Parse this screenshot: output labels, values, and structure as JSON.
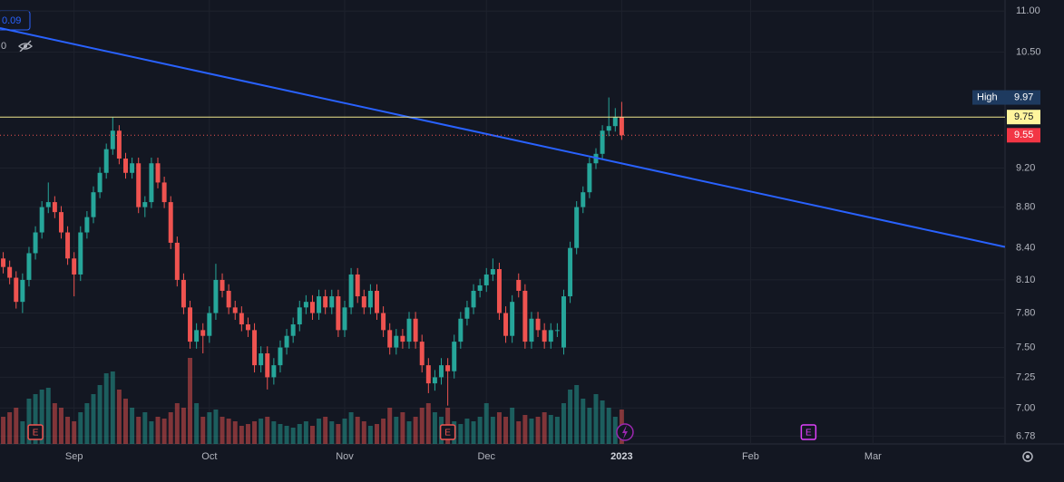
{
  "chart_data": {
    "type": "candlestick",
    "log_scale": true,
    "grid": true,
    "up_color": "#26a69a",
    "down_color": "#ef5350",
    "open": [
      8.3,
      8.22,
      8.12,
      7.9,
      8.1,
      8.35,
      8.55,
      8.8,
      8.85,
      8.75,
      8.55,
      8.3,
      8.15,
      8.55,
      8.7,
      8.95,
      9.15,
      9.4,
      9.6,
      9.3,
      9.15,
      9.25,
      8.8,
      8.85,
      9.25,
      9.05,
      8.85,
      8.45,
      8.1,
      7.85,
      7.55,
      7.65,
      7.6,
      7.8,
      8.1,
      8.0,
      7.85,
      7.8,
      7.7,
      7.65,
      7.35,
      7.45,
      7.25,
      7.35,
      7.5,
      7.6,
      7.7,
      7.85,
      7.9,
      7.8,
      7.95,
      7.85,
      7.95,
      7.65,
      7.85,
      8.15,
      7.95,
      7.85,
      8.0,
      7.8,
      7.65,
      7.5,
      7.6,
      7.55,
      7.75,
      7.55,
      7.35,
      7.2,
      7.25,
      7.35,
      7.3,
      7.55,
      7.75,
      7.85,
      8.0,
      8.05,
      8.15,
      8.2,
      7.8,
      7.6,
      8.1,
      8.0,
      7.55,
      7.75,
      7.65,
      7.55,
      7.65,
      7.5,
      7.95,
      8.4,
      8.8,
      8.95,
      9.25,
      9.35,
      9.6,
      9.65,
      9.75
    ],
    "high": [
      8.36,
      8.28,
      8.18,
      8.16,
      8.41,
      8.61,
      8.86,
      9.05,
      8.91,
      8.81,
      8.61,
      8.36,
      8.61,
      8.76,
      9.01,
      9.21,
      9.46,
      9.75,
      9.66,
      9.36,
      9.31,
      9.31,
      8.91,
      9.31,
      9.31,
      9.11,
      8.91,
      8.51,
      8.16,
      7.91,
      7.71,
      7.71,
      7.86,
      8.25,
      8.16,
      8.06,
      7.91,
      7.86,
      7.76,
      7.71,
      7.51,
      7.51,
      7.41,
      7.56,
      7.66,
      7.76,
      7.91,
      7.96,
      7.96,
      8.01,
      8.01,
      8.01,
      8.01,
      7.91,
      8.21,
      8.21,
      8.01,
      8.06,
      8.06,
      7.86,
      7.71,
      7.66,
      7.66,
      7.81,
      7.81,
      7.61,
      7.41,
      7.31,
      7.41,
      7.41,
      7.61,
      7.81,
      7.91,
      8.06,
      8.11,
      8.21,
      8.3,
      8.26,
      7.86,
      7.96,
      8.16,
      8.06,
      7.81,
      7.81,
      7.71,
      7.71,
      7.71,
      8.01,
      8.46,
      8.86,
      9.01,
      9.31,
      9.41,
      9.66,
      9.97,
      9.85,
      9.92
    ],
    "low": [
      8.16,
      8.06,
      7.84,
      7.8,
      8.04,
      8.29,
      8.49,
      8.74,
      8.69,
      8.49,
      8.24,
      7.95,
      8.09,
      8.49,
      8.64,
      8.89,
      9.09,
      9.34,
      9.24,
      9.09,
      9.09,
      8.74,
      8.7,
      8.79,
      8.99,
      8.79,
      8.39,
      8.04,
      7.79,
      7.49,
      7.49,
      7.45,
      7.54,
      7.74,
      7.94,
      7.79,
      7.74,
      7.64,
      7.59,
      7.29,
      7.29,
      7.15,
      7.19,
      7.29,
      7.44,
      7.54,
      7.64,
      7.79,
      7.74,
      7.74,
      7.79,
      7.79,
      7.59,
      7.59,
      7.79,
      7.89,
      7.79,
      7.79,
      7.74,
      7.59,
      7.44,
      7.44,
      7.49,
      7.49,
      7.49,
      7.29,
      7.12,
      7.14,
      7.19,
      7.02,
      7.24,
      7.49,
      7.69,
      7.79,
      7.94,
      7.99,
      8.09,
      7.74,
      7.54,
      7.54,
      7.94,
      7.49,
      7.49,
      7.59,
      7.49,
      7.49,
      7.59,
      7.44,
      7.89,
      8.34,
      8.74,
      8.89,
      9.19,
      9.29,
      9.54,
      9.59,
      9.5
    ],
    "close": [
      8.22,
      8.12,
      7.9,
      8.1,
      8.35,
      8.55,
      8.8,
      8.85,
      8.75,
      8.55,
      8.3,
      8.15,
      8.55,
      8.7,
      8.95,
      9.15,
      9.4,
      9.6,
      9.3,
      9.15,
      9.25,
      8.8,
      8.85,
      9.25,
      9.05,
      8.85,
      8.45,
      8.1,
      7.85,
      7.55,
      7.65,
      7.6,
      7.8,
      8.1,
      8.0,
      7.85,
      7.8,
      7.7,
      7.65,
      7.35,
      7.45,
      7.25,
      7.35,
      7.5,
      7.6,
      7.7,
      7.85,
      7.9,
      7.8,
      7.95,
      7.85,
      7.95,
      7.65,
      7.85,
      8.15,
      7.95,
      7.85,
      8.0,
      7.8,
      7.65,
      7.5,
      7.6,
      7.55,
      7.75,
      7.55,
      7.35,
      7.2,
      7.25,
      7.35,
      7.3,
      7.55,
      7.75,
      7.85,
      8.0,
      8.05,
      8.15,
      8.2,
      7.8,
      7.6,
      7.9,
      8.0,
      7.55,
      7.75,
      7.65,
      7.55,
      7.65,
      7.65,
      7.95,
      8.4,
      8.8,
      8.95,
      9.25,
      9.35,
      9.6,
      9.65,
      9.75,
      9.55
    ],
    "volume": [
      30,
      35,
      40,
      25,
      50,
      55,
      60,
      62,
      45,
      40,
      30,
      25,
      35,
      45,
      55,
      65,
      78,
      80,
      60,
      50,
      40,
      30,
      35,
      25,
      30,
      28,
      35,
      45,
      40,
      95,
      45,
      30,
      35,
      38,
      30,
      28,
      25,
      20,
      22,
      25,
      28,
      30,
      25,
      22,
      20,
      18,
      22,
      25,
      20,
      28,
      30,
      25,
      22,
      28,
      35,
      30,
      25,
      20,
      22,
      28,
      40,
      30,
      35,
      25,
      30,
      40,
      45,
      35,
      30,
      40,
      25,
      22,
      28,
      25,
      30,
      45,
      30,
      35,
      30,
      40,
      25,
      32,
      28,
      30,
      35,
      32,
      30,
      45,
      60,
      65,
      50,
      40,
      55,
      48,
      40,
      30,
      38
    ],
    "ylim": [
      6.72,
      11.14
    ],
    "yticks": [
      {
        "value": 11,
        "label": "11.00"
      },
      {
        "value": 10.5,
        "label": "10.50"
      },
      {
        "value": 9.2,
        "label": "9.20"
      },
      {
        "value": 8.8,
        "label": "8.80"
      },
      {
        "value": 8.4,
        "label": "8.40"
      },
      {
        "value": 8.1,
        "label": "8.10"
      },
      {
        "value": 7.8,
        "label": "7.80"
      },
      {
        "value": 7.5,
        "label": "7.50"
      },
      7.25,
      {
        "value": 7,
        "label": "7.00"
      },
      6.78
    ],
    "xlim": [
      -0.5,
      155.5
    ],
    "xticks": [
      {
        "value": 11,
        "label": "Sep"
      },
      {
        "value": 32,
        "label": "Oct"
      },
      {
        "value": 53,
        "label": "Nov"
      },
      {
        "value": 75,
        "label": "Dec"
      },
      {
        "value": 96,
        "label": "2023"
      },
      {
        "value": 116,
        "label": "Feb"
      },
      {
        "value": 135,
        "label": "Mar"
      }
    ],
    "trendline": {
      "from": [
        -0.5,
        10.79
      ],
      "to": [
        155.5,
        8.41
      ],
      "color": "#2962ff"
    },
    "hline": {
      "value": 9.75,
      "color": "#f0e68c"
    },
    "last_price": 9.55,
    "high_marker": {
      "label": "High",
      "value": 9.97
    },
    "events": [
      {
        "index": 5,
        "label": "E"
      },
      {
        "index": 69,
        "label": "E"
      },
      {
        "index": 125,
        "label": "E"
      }
    ],
    "indicator_values": [
      0.09,
      0
    ]
  }
}
